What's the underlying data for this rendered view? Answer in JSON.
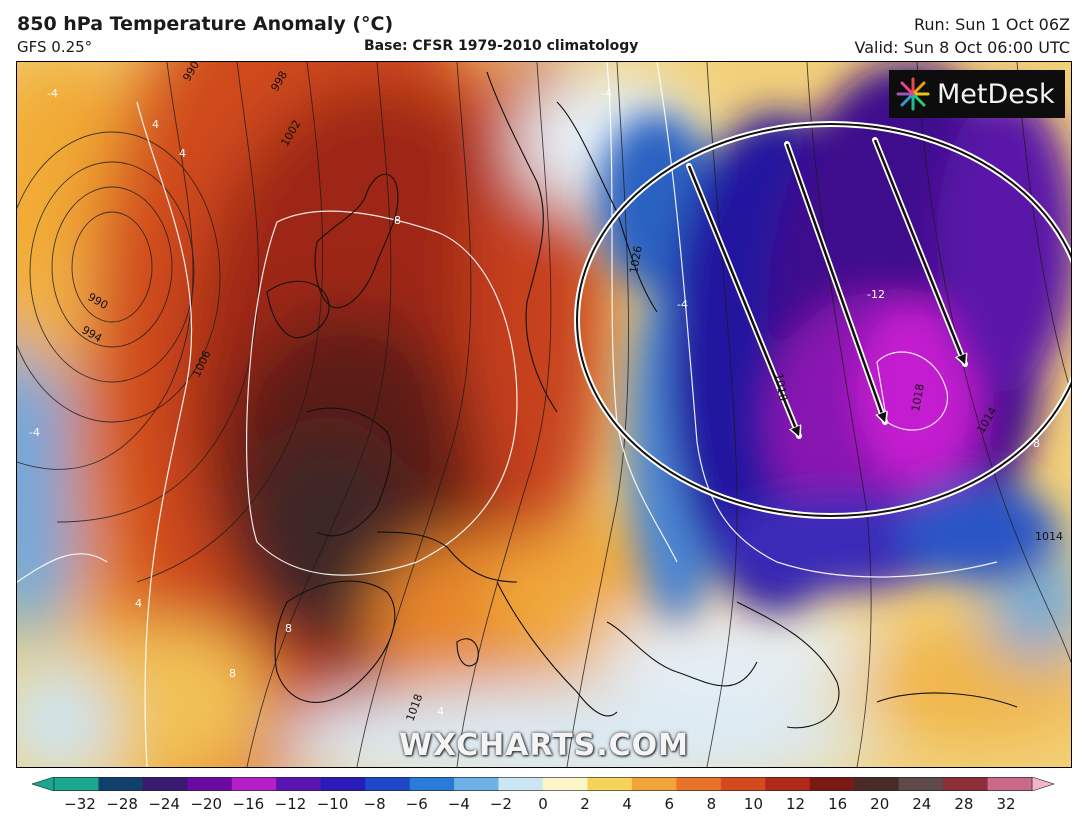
{
  "header": {
    "title": "850 hPa Temperature Anomaly (°C)",
    "model": "GFS 0.25°",
    "base": "Base: CFSR 1979-2010 climatology",
    "run": "Run: Sun 1 Oct 06Z",
    "valid": "Valid: Sun 8 Oct 06:00 UTC"
  },
  "logo": {
    "text": "MetDesk"
  },
  "watermark": "WXCHARTS.COM",
  "map": {
    "isobar_labels": [
      "990",
      "998",
      "1002",
      "990",
      "994",
      "1006",
      "1026",
      "1010",
      "1018",
      "1014",
      "1014",
      "1018"
    ],
    "anomaly_labels": [
      "-4",
      "4",
      "4",
      "8",
      "-4",
      "-4",
      "-12",
      "-8",
      "4",
      "8",
      "8",
      "4",
      "-4"
    ],
    "annotation": {
      "shape": "ellipse",
      "arrows": 3,
      "arrow_direction": "north-west to south-east"
    }
  },
  "colorbar": {
    "ticks": [
      "−32",
      "−28",
      "−24",
      "−20",
      "−16",
      "−12",
      "−10",
      "−8",
      "−6",
      "−4",
      "−2",
      "0",
      "2",
      "4",
      "6",
      "8",
      "10",
      "12",
      "16",
      "20",
      "24",
      "28",
      "32"
    ],
    "colors": [
      "#1aa88e",
      "#12406e",
      "#3a1a70",
      "#6a0aa0",
      "#b420c8",
      "#5a14b0",
      "#2a1ab8",
      "#1e48c8",
      "#2a7ad8",
      "#6fb0e6",
      "#cde6f4",
      "#fbf6c8",
      "#f6d35a",
      "#f0a43a",
      "#e8732a",
      "#d24a1e",
      "#b0281a",
      "#7a1a14",
      "#4a2a28",
      "#5e4a46",
      "#8a2e3a",
      "#c86a8a",
      "#f0b6c8"
    ]
  }
}
